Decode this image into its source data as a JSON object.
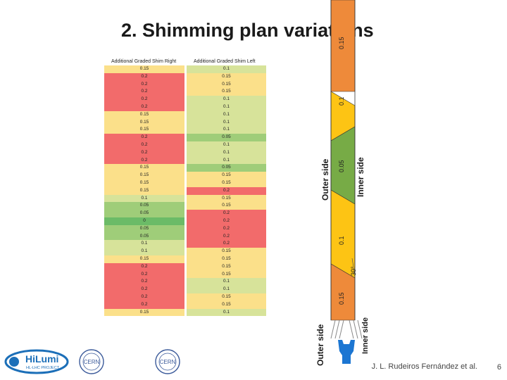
{
  "title": "2. Shimming plan variations",
  "right_shim": {
    "header": "Additional Graded Shim Right",
    "rows": [
      {
        "v": "0.15",
        "c": "y"
      },
      {
        "v": "0.2",
        "c": "r"
      },
      {
        "v": "0.2",
        "c": "r"
      },
      {
        "v": "0.2",
        "c": "r"
      },
      {
        "v": "0.2",
        "c": "r"
      },
      {
        "v": "0.2",
        "c": "r"
      },
      {
        "v": "0.15",
        "c": "y"
      },
      {
        "v": "0.15",
        "c": "y"
      },
      {
        "v": "0.15",
        "c": "y"
      },
      {
        "v": "0.2",
        "c": "r"
      },
      {
        "v": "0.2",
        "c": "r"
      },
      {
        "v": "0.2",
        "c": "r"
      },
      {
        "v": "0.2",
        "c": "r"
      },
      {
        "v": "0.15",
        "c": "y"
      },
      {
        "v": "0.15",
        "c": "y"
      },
      {
        "v": "0.15",
        "c": "y"
      },
      {
        "v": "0.15",
        "c": "y"
      },
      {
        "v": "0.1",
        "c": "lg"
      },
      {
        "v": "0.05",
        "c": "g"
      },
      {
        "v": "0.05",
        "c": "g"
      },
      {
        "v": "0",
        "c": "dg"
      },
      {
        "v": "0.05",
        "c": "g"
      },
      {
        "v": "0.05",
        "c": "g"
      },
      {
        "v": "0.1",
        "c": "lg"
      },
      {
        "v": "0.1",
        "c": "lg"
      },
      {
        "v": "0.15",
        "c": "y"
      },
      {
        "v": "0.2",
        "c": "r"
      },
      {
        "v": "0.2",
        "c": "r"
      },
      {
        "v": "0.2",
        "c": "r"
      },
      {
        "v": "0.2",
        "c": "r"
      },
      {
        "v": "0.2",
        "c": "r"
      },
      {
        "v": "0.2",
        "c": "r"
      },
      {
        "v": "0.15",
        "c": "y"
      }
    ]
  },
  "left_shim": {
    "header": "Additional Graded Shim Left",
    "rows": [
      {
        "v": "0.1",
        "c": "lg"
      },
      {
        "v": "0.15",
        "c": "y"
      },
      {
        "v": "0.15",
        "c": "y"
      },
      {
        "v": "0.15",
        "c": "y"
      },
      {
        "v": "0.1",
        "c": "lg"
      },
      {
        "v": "0.1",
        "c": "lg"
      },
      {
        "v": "0.1",
        "c": "lg"
      },
      {
        "v": "0.1",
        "c": "lg"
      },
      {
        "v": "0.1",
        "c": "lg"
      },
      {
        "v": "0.05",
        "c": "g"
      },
      {
        "v": "0.1",
        "c": "lg"
      },
      {
        "v": "0.1",
        "c": "lg"
      },
      {
        "v": "0.1",
        "c": "lg"
      },
      {
        "v": "0.05",
        "c": "g"
      },
      {
        "v": "0.15",
        "c": "y"
      },
      {
        "v": "0.15",
        "c": "y"
      },
      {
        "v": "0.2",
        "c": "r"
      },
      {
        "v": "0.15",
        "c": "y"
      },
      {
        "v": "0.15",
        "c": "y"
      },
      {
        "v": "0.2",
        "c": "r"
      },
      {
        "v": "0.2",
        "c": "r"
      },
      {
        "v": "0.2",
        "c": "r"
      },
      {
        "v": "0.2",
        "c": "r"
      },
      {
        "v": "0.2",
        "c": "r"
      },
      {
        "v": "0.15",
        "c": "y"
      },
      {
        "v": "0.15",
        "c": "y"
      },
      {
        "v": "0.15",
        "c": "y"
      },
      {
        "v": "0.15",
        "c": "y"
      },
      {
        "v": "0.1",
        "c": "lg"
      },
      {
        "v": "0.1",
        "c": "lg"
      },
      {
        "v": "0.15",
        "c": "y"
      },
      {
        "v": "0.15",
        "c": "y"
      },
      {
        "v": "0.1",
        "c": "lg"
      }
    ]
  },
  "diagram": {
    "outer_side_label": "Outer side",
    "inner_side_label": "Inner side",
    "segment_labels": [
      "0.15",
      "0.1",
      "0.05",
      "0.1",
      "0.15"
    ],
    "angle_label": "30°",
    "colors": {
      "orange": "#ee8a3a",
      "yellow": "#fdc414",
      "green": "#77ab46"
    }
  },
  "bottom": {
    "outer_side_label": "Outer side",
    "inner_side_label": "Inner side"
  },
  "footer": {
    "author": "J. L. Rudeiros Fernández et al.",
    "page": "6"
  },
  "logos": {
    "hilumi_text": "HiLumi",
    "hilumi_sub": "HL-LHC PROJECT",
    "cern_text": "CERN"
  },
  "colors": {
    "r": "#f26b6b",
    "y": "#fbe08a",
    "lg": "#d7e39a",
    "g": "#9fcd79",
    "dg": "#6bbb67"
  }
}
